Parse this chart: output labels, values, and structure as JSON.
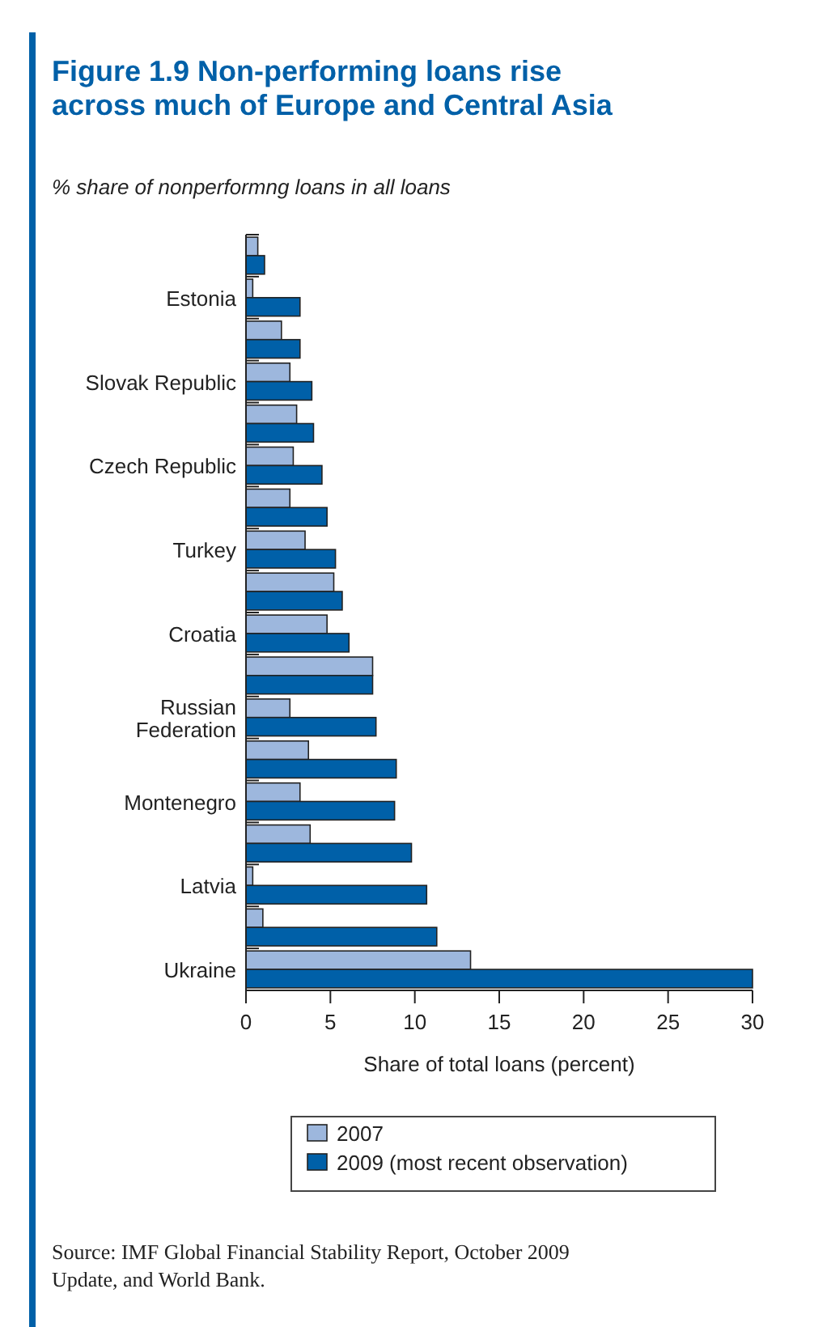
{
  "chart_data": {
    "type": "bar",
    "orientation": "horizontal",
    "title": "Figure 1.9  Non-performing loans rise across much of Europe and Central Asia",
    "subtitle": "% share of nonperformng loans in all loans",
    "xlabel": "Share of total loans (percent)",
    "categories": [
      null,
      "Estonia",
      null,
      "Slovak Republic",
      null,
      "Czech Republic",
      null,
      "Turkey",
      null,
      "Croatia",
      null,
      "Russian Federation",
      null,
      "Montenegro",
      null,
      "Latvia",
      null,
      "Ukraine"
    ],
    "series": [
      {
        "name": "2007",
        "color": "#9db7dd",
        "values": [
          0.7,
          0.4,
          2.1,
          2.6,
          3.0,
          2.8,
          2.6,
          3.5,
          5.2,
          4.8,
          7.5,
          2.6,
          3.7,
          3.2,
          3.8,
          0.4,
          1.0,
          13.3
        ]
      },
      {
        "name": "2009 (most recent observation)",
        "color": "#0060a8",
        "values": [
          1.1,
          3.2,
          3.2,
          3.9,
          4.0,
          4.5,
          4.8,
          5.3,
          5.7,
          6.1,
          7.5,
          7.7,
          8.9,
          8.8,
          9.8,
          10.7,
          11.3,
          30
        ]
      }
    ],
    "xlim": [
      0,
      30
    ],
    "xticks": [
      0,
      5,
      10,
      15,
      20,
      25,
      30
    ],
    "legend": "bottom",
    "grid": false,
    "annotations": [
      "Source: IMF Global Financial Stability Report, October 2009 Update, and World Bank."
    ]
  }
}
